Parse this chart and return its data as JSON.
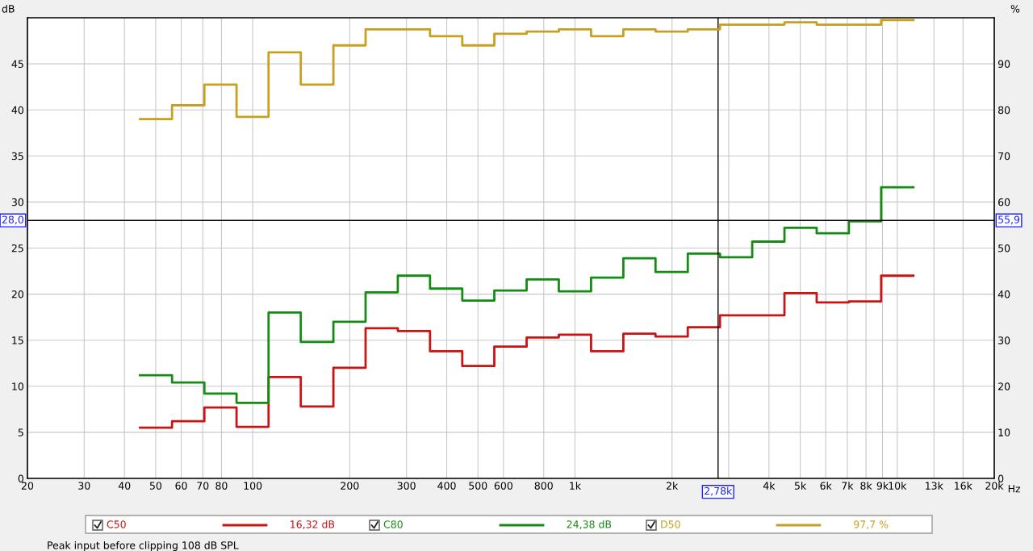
{
  "chart_data": {
    "type": "step",
    "xlabel": "Hz",
    "ylabel": "dB",
    "y2label": "%",
    "x": [
      44.7,
      56.2,
      70.8,
      89.1,
      112,
      141,
      178,
      224,
      282,
      355,
      447,
      562,
      708,
      891,
      1122,
      1413,
      1778,
      2239,
      2818,
      3548,
      4467,
      5623,
      7079,
      8913,
      11220
    ],
    "series": [
      {
        "name": "C50",
        "color": "#c81414",
        "values": [
          5.5,
          6.2,
          7.7,
          5.6,
          11.0,
          7.8,
          12.0,
          16.3,
          16.0,
          13.8,
          12.2,
          14.3,
          15.3,
          15.6,
          13.8,
          15.7,
          15.4,
          16.4,
          17.7,
          17.7,
          20.1,
          19.1,
          19.2,
          22.0,
          22.0
        ]
      },
      {
        "name": "C80",
        "color": "#148c14",
        "values": [
          11.2,
          10.4,
          9.2,
          8.2,
          18.0,
          14.8,
          17.0,
          20.2,
          22.0,
          20.6,
          19.3,
          20.4,
          21.6,
          20.3,
          21.8,
          23.9,
          22.4,
          24.4,
          24.0,
          25.7,
          27.2,
          26.6,
          27.9,
          31.6,
          31.6
        ]
      },
      {
        "name": "D50",
        "color": "#c8a020",
        "axis": "y2",
        "values": [
          78,
          81,
          85.5,
          78.5,
          92.5,
          85.5,
          94,
          97.5,
          97.5,
          96,
          94,
          96.5,
          97,
          97.5,
          96,
          97.5,
          97,
          97.5,
          98.5,
          98.5,
          99,
          98.5,
          98.5,
          99.5,
          99.5
        ]
      }
    ],
    "log": "x",
    "xlim": [
      20,
      20000
    ],
    "xticks": [
      20,
      30,
      40,
      50,
      60,
      70,
      80,
      100,
      200,
      300,
      400,
      500,
      600,
      800,
      {
        "value": 1000,
        "label": "1k"
      },
      {
        "value": 2000,
        "label": "2k"
      },
      {
        "value": 3000,
        "label": null
      },
      {
        "value": 4000,
        "label": "4k"
      },
      {
        "value": 5000,
        "label": "5k"
      },
      {
        "value": 6000,
        "label": "6k"
      },
      {
        "value": 7000,
        "label": "7k"
      },
      {
        "value": 8000,
        "label": "8k"
      },
      {
        "value": 9000,
        "label": "9k"
      },
      {
        "value": 10000,
        "label": "10k"
      },
      {
        "value": 13000,
        "label": "13k"
      },
      {
        "value": 16000,
        "label": "16k"
      },
      {
        "value": 20000,
        "label": "20k"
      }
    ],
    "ylim": [
      0,
      50
    ],
    "yticks": [
      0,
      5,
      10,
      15,
      20,
      25,
      30,
      35,
      40,
      45
    ],
    "y2lim": [
      0,
      100
    ],
    "y2ticks": [
      0,
      10,
      20,
      30,
      40,
      50,
      60,
      70,
      80,
      90
    ],
    "ref_lines": [
      {
        "axis": "x",
        "value": 2780,
        "label": "2,78k",
        "color": "#000000"
      },
      {
        "axis": "y",
        "value": 28.0,
        "label": "28,0",
        "color": "#000000"
      }
    ],
    "grid": true,
    "legend": "bottom",
    "line_style": "solid",
    "marker": "none",
    "annotations": [
      "16,32 dB",
      "24,38 dB",
      "97,7 %",
      "Peak input before clipping 108 dB SPL",
      "55,9"
    ]
  }
}
